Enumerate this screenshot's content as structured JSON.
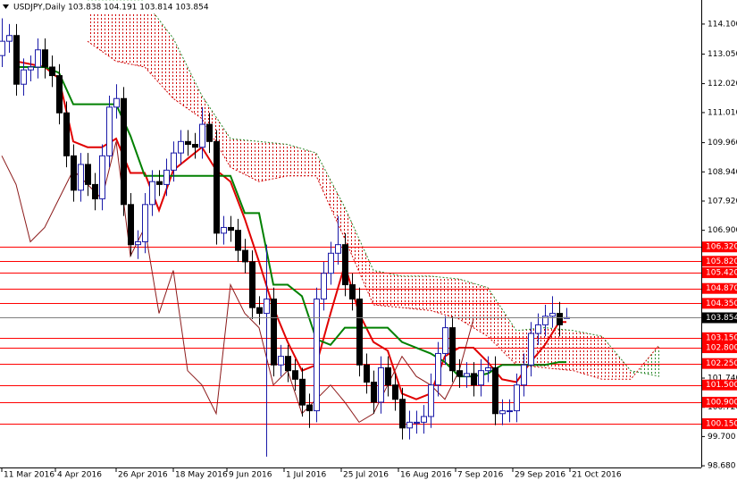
{
  "chart_data": {
    "type": "candlestick",
    "title": "USDJPY,Daily  103.838 104.191 103.814 103.854",
    "xlim": [
      -0.5,
      195.75
    ],
    "ylim": [
      98.62,
      114.94
    ],
    "xticks": [
      {
        "value": 0,
        "label": "11 Mar 2016"
      },
      {
        "value": 15,
        "label": "4 Apr 2016"
      },
      {
        "value": 32,
        "label": "26 Apr 2016"
      },
      {
        "value": 48,
        "label": "18 May 2016"
      },
      {
        "value": 63,
        "label": "9 Jun 2016"
      },
      {
        "value": 79,
        "label": "1 Jul 2016"
      },
      {
        "value": 95,
        "label": "25 Jul 2016"
      },
      {
        "value": 111,
        "label": "16 Aug 2016"
      },
      {
        "value": 127,
        "label": "7 Sep 2016"
      },
      {
        "value": 143,
        "label": "29 Sep 2016"
      },
      {
        "value": 159,
        "label": "21 Oct 2016"
      }
    ],
    "yticks": [
      {
        "value": 114.1,
        "label": "114.100"
      },
      {
        "value": 113.05,
        "label": "113.050"
      },
      {
        "value": 112.02,
        "label": "112.020"
      },
      {
        "value": 111.01,
        "label": "111.010"
      },
      {
        "value": 109.96,
        "label": "109.960"
      },
      {
        "value": 108.94,
        "label": "108.940"
      },
      {
        "value": 107.92,
        "label": "107.920"
      },
      {
        "value": 106.9,
        "label": "106.900"
      },
      {
        "value": 101.74,
        "label": "101.740"
      },
      {
        "value": 100.72,
        "label": "100.720"
      },
      {
        "value": 99.7,
        "label": "99.700"
      },
      {
        "value": 98.68,
        "label": "98.680"
      }
    ],
    "candles": {
      "up_color": "#1a1aa8",
      "down_color": "#000000",
      "x": [
        0,
        2,
        4,
        6,
        8,
        10,
        12,
        14,
        16,
        18,
        20,
        22,
        24,
        26,
        28,
        30,
        32,
        34,
        36,
        38,
        40,
        42,
        44,
        46,
        48,
        50,
        52,
        54,
        56,
        58,
        60,
        62,
        64,
        66,
        68,
        70,
        72,
        74,
        76,
        78,
        80,
        82,
        84,
        86,
        88,
        90,
        92,
        94,
        96,
        98,
        100,
        102,
        104,
        106,
        108,
        110,
        112,
        114,
        116,
        118,
        120,
        122,
        124,
        126,
        128,
        130,
        132,
        134,
        136,
        138,
        140,
        142,
        144,
        146,
        148,
        150,
        152,
        154,
        156,
        158
      ],
      "open": [
        113.0,
        113.5,
        113.7,
        112.0,
        112.5,
        112.6,
        113.2,
        112.6,
        112.3,
        111.0,
        109.5,
        108.3,
        109.2,
        108.5,
        108.0,
        109.5,
        111.2,
        111.5,
        107.8,
        106.4,
        106.5,
        107.8,
        108.6,
        108.5,
        109.0,
        109.6,
        110.0,
        109.9,
        109.8,
        110.6,
        110.0,
        106.8,
        107.0,
        106.9,
        106.2,
        105.8,
        104.2,
        104.0,
        104.5,
        102.2,
        102.5,
        102.0,
        101.7,
        100.8,
        100.6,
        104.5,
        105.4,
        106.1,
        106.4,
        105.0,
        104.5,
        102.2,
        101.6,
        100.9,
        102.1,
        101.5,
        101.0,
        100.0,
        100.2,
        100.2,
        100.4,
        101.5,
        102.6,
        103.5,
        102.0,
        101.8,
        101.9,
        101.5,
        102.0,
        102.1,
        100.5,
        100.6,
        100.6,
        101.5,
        102.2,
        103.3,
        103.6,
        103.9,
        104.0,
        103.838
      ],
      "high": [
        114.3,
        114.1,
        114.1,
        112.9,
        113.0,
        113.6,
        113.6,
        113.0,
        112.7,
        111.4,
        109.9,
        109.6,
        109.6,
        108.9,
        109.9,
        111.6,
        112.0,
        111.9,
        108.2,
        106.9,
        108.2,
        109.0,
        109.0,
        109.4,
        110.0,
        110.4,
        110.4,
        110.3,
        111.2,
        111.0,
        110.4,
        107.4,
        107.4,
        107.3,
        106.6,
        106.2,
        104.6,
        106.4,
        104.9,
        102.9,
        102.9,
        102.4,
        102.1,
        101.2,
        104.9,
        105.8,
        106.5,
        107.4,
        106.8,
        105.4,
        104.9,
        102.6,
        102.0,
        102.5,
        102.5,
        101.9,
        101.4,
        100.6,
        100.6,
        100.8,
        101.9,
        103.0,
        103.9,
        103.9,
        102.4,
        102.3,
        102.3,
        102.4,
        102.5,
        102.5,
        101.0,
        101.0,
        101.9,
        102.6,
        103.7,
        104.0,
        104.3,
        104.6,
        104.4,
        104.191
      ],
      "low": [
        112.6,
        113.1,
        111.6,
        111.6,
        112.1,
        112.2,
        112.2,
        111.9,
        110.6,
        109.1,
        107.9,
        107.9,
        108.1,
        107.6,
        107.6,
        109.1,
        110.8,
        107.4,
        106.0,
        105.9,
        106.1,
        107.4,
        108.1,
        108.1,
        108.6,
        109.2,
        109.5,
        109.4,
        109.4,
        109.6,
        106.4,
        106.4,
        106.5,
        105.8,
        105.4,
        103.8,
        103.6,
        99.0,
        101.8,
        101.8,
        101.6,
        101.3,
        100.4,
        100.0,
        100.2,
        104.1,
        105.0,
        105.7,
        104.6,
        104.1,
        101.8,
        101.2,
        100.5,
        100.5,
        101.1,
        100.6,
        99.6,
        99.6,
        99.8,
        99.8,
        100.0,
        101.1,
        102.2,
        101.6,
        101.4,
        101.4,
        101.1,
        101.1,
        101.6,
        100.1,
        100.1,
        100.2,
        100.2,
        101.1,
        101.8,
        102.9,
        103.2,
        103.5,
        103.2,
        103.814
      ],
      "close": [
        113.5,
        113.7,
        112.0,
        112.5,
        112.6,
        113.2,
        112.6,
        112.3,
        111.0,
        109.5,
        108.3,
        109.2,
        108.5,
        108.0,
        109.5,
        111.2,
        111.5,
        107.8,
        106.4,
        106.5,
        107.8,
        108.6,
        108.5,
        109.0,
        109.6,
        110.0,
        109.9,
        109.8,
        110.6,
        110.0,
        106.8,
        107.0,
        106.9,
        106.2,
        105.8,
        104.2,
        104.0,
        104.5,
        102.2,
        102.5,
        102.0,
        101.7,
        100.8,
        100.6,
        104.5,
        105.4,
        106.1,
        106.4,
        105.0,
        104.5,
        102.2,
        101.6,
        100.9,
        102.1,
        101.5,
        101.0,
        100.0,
        100.2,
        100.2,
        100.4,
        101.5,
        102.6,
        103.5,
        102.0,
        101.8,
        101.9,
        101.5,
        102.0,
        102.1,
        100.5,
        100.6,
        100.6,
        101.5,
        102.2,
        103.3,
        103.6,
        103.9,
        104.0,
        103.6,
        103.854
      ]
    },
    "cloud": {
      "bear_color": "#d00000",
      "bull_color": "#2e8b2e",
      "x": [
        24,
        32,
        40,
        48,
        56,
        64,
        72,
        80,
        88,
        96,
        104,
        112,
        120,
        128,
        136,
        144,
        152,
        160,
        168,
        176,
        184
      ],
      "span_a": [
        113.5,
        112.8,
        112.6,
        111.5,
        110.8,
        109.1,
        108.6,
        108.8,
        108.8,
        106.6,
        104.3,
        104.2,
        104.1,
        103.8,
        103.2,
        102.2,
        102.1,
        102.0,
        101.7,
        101.7,
        102.9
      ],
      "span_b": [
        114.9,
        114.9,
        114.9,
        113.6,
        111.6,
        110.1,
        110.0,
        109.9,
        109.6,
        107.7,
        105.5,
        105.3,
        105.3,
        105.2,
        104.9,
        103.4,
        103.5,
        103.4,
        103.2,
        102.0,
        101.8
      ]
    },
    "series": [
      {
        "color": "#e00000",
        "width": 2,
        "x": [
          4,
          8,
          12,
          16,
          20,
          24,
          28,
          32,
          36,
          40,
          44,
          48,
          52,
          56,
          60,
          64,
          68,
          72,
          76,
          80,
          84,
          88,
          92,
          96,
          100,
          104,
          108,
          112,
          116,
          120,
          124,
          128,
          132,
          136,
          140,
          144,
          148,
          152,
          156,
          158
        ],
        "values": [
          112.8,
          112.7,
          112.6,
          112.2,
          110.0,
          109.8,
          109.8,
          110.1,
          108.9,
          108.9,
          107.6,
          109.0,
          109.4,
          109.8,
          109.0,
          108.6,
          107.3,
          105.8,
          104.2,
          103.0,
          102.0,
          102.2,
          104.0,
          105.7,
          104.0,
          103.0,
          102.7,
          101.2,
          101.0,
          101.2,
          102.5,
          102.8,
          102.8,
          102.3,
          101.7,
          101.6,
          102.3,
          102.9,
          103.7,
          103.7
        ]
      },
      {
        "color": "#008000",
        "width": 2,
        "x": [
          4,
          8,
          12,
          16,
          20,
          24,
          28,
          32,
          36,
          40,
          44,
          48,
          52,
          56,
          60,
          64,
          68,
          72,
          76,
          80,
          84,
          88,
          92,
          96,
          100,
          104,
          108,
          112,
          116,
          120,
          124,
          128,
          132,
          136,
          140,
          144,
          148,
          152,
          156,
          158
        ],
        "values": [
          112.6,
          112.6,
          112.6,
          112.4,
          111.3,
          111.3,
          111.3,
          111.3,
          110.2,
          108.8,
          108.8,
          108.8,
          108.8,
          108.8,
          108.8,
          108.8,
          107.5,
          107.5,
          105.0,
          105.0,
          104.6,
          103.1,
          102.9,
          103.5,
          103.5,
          103.5,
          103.5,
          103.0,
          102.8,
          102.6,
          102.3,
          101.8,
          101.8,
          101.9,
          102.2,
          102.2,
          102.2,
          102.2,
          102.3,
          102.3
        ]
      },
      {
        "color": "#8b1a1a",
        "width": 1,
        "x": [
          0,
          4,
          8,
          12,
          16,
          20,
          24,
          28,
          32,
          36,
          40,
          44,
          48,
          52,
          56,
          60,
          64,
          68,
          72,
          76,
          80,
          84,
          88,
          92,
          96,
          100,
          104,
          108,
          112,
          116,
          120,
          124,
          128,
          132
        ],
        "values": [
          109.5,
          108.5,
          106.5,
          107.0,
          108.0,
          109.0,
          108.5,
          108.0,
          110.0,
          106.0,
          107.0,
          104.0,
          105.5,
          102.0,
          101.5,
          100.5,
          105.0,
          104.0,
          103.5,
          101.5,
          102.0,
          100.5,
          101.0,
          101.5,
          100.9,
          100.2,
          100.5,
          101.5,
          102.5,
          101.8,
          101.5,
          101.0,
          102.0,
          103.8
        ]
      }
    ],
    "levels": {
      "color": "#ff0000",
      "values": [
        {
          "value": 106.32,
          "label": "106.320"
        },
        {
          "value": 105.82,
          "label": "105.820"
        },
        {
          "value": 105.42,
          "label": "105.420"
        },
        {
          "value": 104.87,
          "label": "104.870"
        },
        {
          "value": 104.35,
          "label": "104.350"
        },
        {
          "value": 103.15,
          "label": "103.150"
        },
        {
          "value": 102.8,
          "label": "102.800"
        },
        {
          "value": 102.25,
          "label": "102.250"
        },
        {
          "value": 101.5,
          "label": "101.500"
        },
        {
          "value": 100.9,
          "label": "100.900"
        },
        {
          "value": 100.15,
          "label": "100.150"
        }
      ]
    },
    "last_price": {
      "value": 103.854,
      "label": "103.854",
      "color": "#808080"
    }
  }
}
